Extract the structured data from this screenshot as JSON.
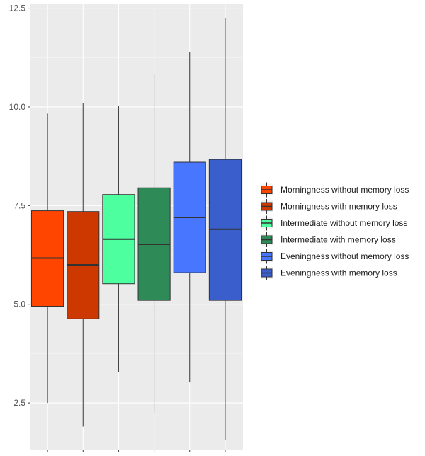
{
  "chart_data": {
    "type": "box",
    "title": "",
    "xlabel": "",
    "ylabel": "",
    "ylim": [
      1.3,
      12.6
    ],
    "y_ticks": [
      2.5,
      5.0,
      7.5,
      10.0,
      12.5
    ],
    "y_tick_labels": [
      "2.5",
      "5.0",
      "7.5",
      "10.0",
      "12.5"
    ],
    "grid": true,
    "legend_position": "right",
    "series": [
      {
        "name": "Morningness without memory loss",
        "color": "#FF4500",
        "min": 2.5,
        "q1": 4.95,
        "median": 6.17,
        "q3": 7.37,
        "max": 9.83
      },
      {
        "name": "Morningness with memory loss",
        "color": "#CD3700",
        "min": 1.9,
        "q1": 4.63,
        "median": 6.0,
        "q3": 7.35,
        "max": 10.1
      },
      {
        "name": "Intermediate without memory loss",
        "color": "#4EFF9F",
        "min": 3.28,
        "q1": 5.52,
        "median": 6.65,
        "q3": 7.78,
        "max": 10.03
      },
      {
        "name": "Intermediate with memory loss",
        "color": "#2E8B57",
        "min": 2.25,
        "q1": 5.1,
        "median": 6.52,
        "q3": 7.95,
        "max": 10.82
      },
      {
        "name": "Eveningness without memory loss",
        "color": "#4876FF",
        "min": 3.02,
        "q1": 5.8,
        "median": 7.2,
        "q3": 8.6,
        "max": 11.38
      },
      {
        "name": "Eveningness with memory loss",
        "color": "#3A5FCD",
        "min": 1.55,
        "q1": 5.1,
        "median": 6.9,
        "q3": 8.67,
        "max": 12.25
      }
    ]
  }
}
